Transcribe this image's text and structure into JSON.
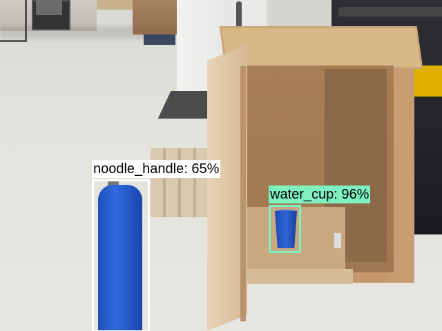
{
  "detections": [
    {
      "label": "noodle_handle: 65%",
      "color": "#ffffff"
    },
    {
      "label": "water_cup: 96%",
      "color": "#7ff0c0"
    }
  ]
}
